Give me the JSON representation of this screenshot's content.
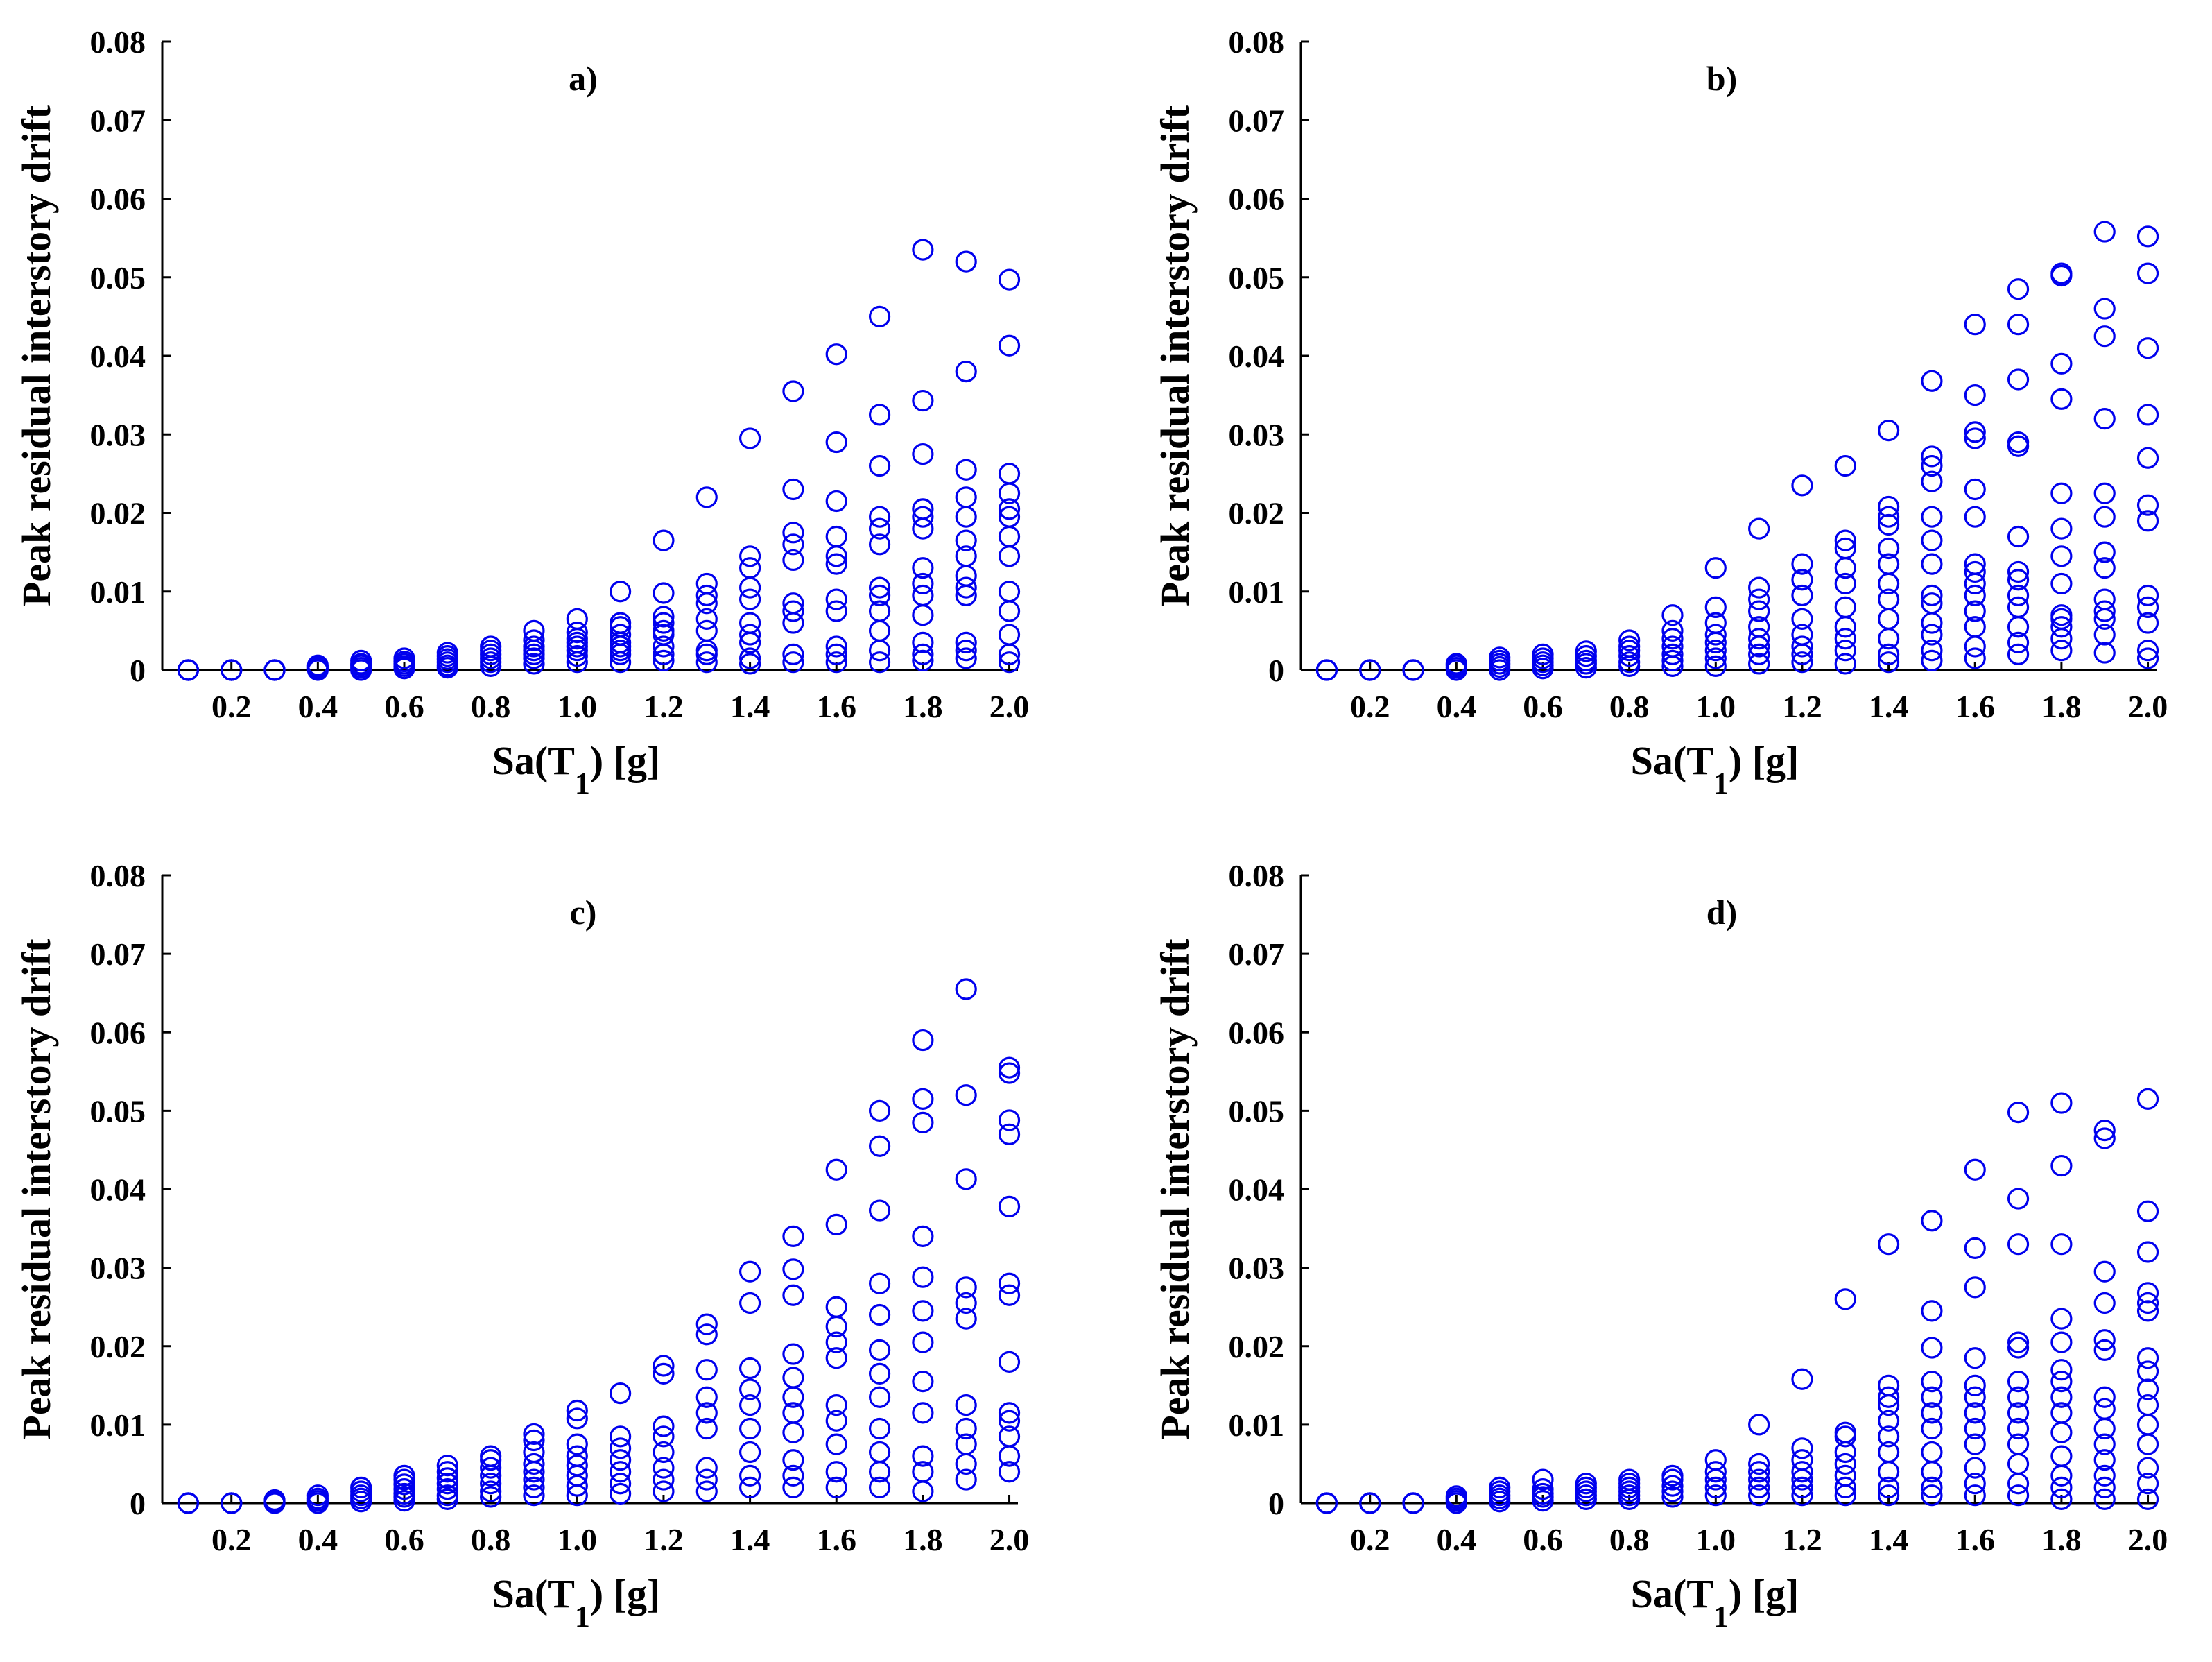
{
  "figure": {
    "point_color": "#0000ee",
    "axis_color": "#000000"
  },
  "chart_data": [
    {
      "type": "scatter",
      "title": "a)",
      "xlabel": "Sa(T1) [g]",
      "xlabel_main": "Sa(T",
      "xlabel_sub": "1",
      "xlabel_tail": ") [g]",
      "ylabel": "Peak residual interstory drift",
      "xlim": [
        0.04,
        2.02
      ],
      "ylim": [
        0,
        0.08
      ],
      "xticks": [
        "0.2",
        "0.4",
        "0.6",
        "0.8",
        "1.0",
        "1.2",
        "1.4",
        "1.6",
        "1.8",
        "2.0"
      ],
      "yticks": [
        "0",
        "0.01",
        "0.02",
        "0.03",
        "0.04",
        "0.05",
        "0.06",
        "0.07",
        "0.08"
      ],
      "x": [
        0.1,
        0.2,
        0.3,
        0.4,
        0.5,
        0.6,
        0.7,
        0.8,
        0.9,
        1.0,
        1.1,
        1.2,
        1.3,
        1.4,
        1.5,
        1.6,
        1.7,
        1.8,
        1.9,
        2.0
      ],
      "y": [
        [
          0,
          0,
          0,
          0
        ],
        [
          0,
          0,
          0,
          0
        ],
        [
          0,
          0,
          0,
          0
        ],
        [
          0,
          0.0002,
          0.0004,
          0.0006
        ],
        [
          0,
          0.0003,
          0.0006,
          0.0008,
          0.0012
        ],
        [
          0.0002,
          0.0005,
          0.0008,
          0.0011,
          0.0015
        ],
        [
          0.0003,
          0.0006,
          0.001,
          0.0014,
          0.0018,
          0.0022
        ],
        [
          0.0005,
          0.001,
          0.0015,
          0.002,
          0.0025,
          0.003
        ],
        [
          0.0008,
          0.0015,
          0.002,
          0.0025,
          0.003,
          0.0038,
          0.005
        ],
        [
          0.001,
          0.0018,
          0.0025,
          0.003,
          0.0035,
          0.004,
          0.0048,
          0.0065
        ],
        [
          0.001,
          0.002,
          0.0025,
          0.003,
          0.0035,
          0.0045,
          0.0055,
          0.006,
          0.01
        ],
        [
          0.0012,
          0.002,
          0.003,
          0.0045,
          0.005,
          0.006,
          0.0068,
          0.0098,
          0.0165
        ],
        [
          0.001,
          0.002,
          0.0025,
          0.005,
          0.0065,
          0.0085,
          0.0095,
          0.011,
          0.022
        ],
        [
          0.0008,
          0.0015,
          0.0035,
          0.0045,
          0.006,
          0.009,
          0.0105,
          0.013,
          0.0145,
          0.0295
        ],
        [
          0.001,
          0.002,
          0.006,
          0.0075,
          0.0085,
          0.014,
          0.016,
          0.0175,
          0.023,
          0.0355
        ],
        [
          0.001,
          0.002,
          0.003,
          0.0075,
          0.009,
          0.0135,
          0.0145,
          0.017,
          0.0215,
          0.029,
          0.0402
        ],
        [
          0.001,
          0.0025,
          0.005,
          0.0075,
          0.0095,
          0.0105,
          0.016,
          0.018,
          0.0195,
          0.026,
          0.0325,
          0.045
        ],
        [
          0.0012,
          0.002,
          0.0035,
          0.007,
          0.0095,
          0.011,
          0.013,
          0.018,
          0.0195,
          0.0205,
          0.0275,
          0.0343,
          0.0535
        ],
        [
          0.0015,
          0.0025,
          0.0035,
          0.0095,
          0.0105,
          0.012,
          0.0145,
          0.0165,
          0.0195,
          0.022,
          0.0255,
          0.038,
          0.052
        ],
        [
          0.001,
          0.002,
          0.0045,
          0.0075,
          0.01,
          0.0145,
          0.017,
          0.0195,
          0.0205,
          0.0225,
          0.025,
          0.0413,
          0.0497
        ]
      ]
    },
    {
      "type": "scatter",
      "title": "b)",
      "xlabel": "Sa(T1) [g]",
      "xlabel_main": "Sa(T",
      "xlabel_sub": "1",
      "xlabel_tail": ") [g]",
      "ylabel": "Peak residual interstory drift",
      "xlim": [
        0.04,
        2.02
      ],
      "ylim": [
        0,
        0.08
      ],
      "xticks": [
        "0.2",
        "0.4",
        "0.6",
        "0.8",
        "1.0",
        "1.2",
        "1.4",
        "1.6",
        "1.8",
        "2.0"
      ],
      "yticks": [
        "0",
        "0.01",
        "0.02",
        "0.03",
        "0.04",
        "0.05",
        "0.06",
        "0.07",
        "0.08"
      ],
      "x": [
        0.1,
        0.2,
        0.3,
        0.4,
        0.5,
        0.6,
        0.7,
        0.8,
        0.9,
        1.0,
        1.1,
        1.2,
        1.3,
        1.4,
        1.5,
        1.6,
        1.7,
        1.8,
        1.9,
        2.0
      ],
      "y": [
        [
          0,
          0,
          0
        ],
        [
          0,
          0,
          0
        ],
        [
          0,
          0,
          0
        ],
        [
          0,
          0.0003,
          0.0006,
          0.0008
        ],
        [
          0,
          0.0004,
          0.0008,
          0.0012,
          0.0016
        ],
        [
          0.0002,
          0.0006,
          0.001,
          0.0015,
          0.002
        ],
        [
          0.0003,
          0.0008,
          0.0012,
          0.0018,
          0.0024
        ],
        [
          0.0005,
          0.001,
          0.0018,
          0.0025,
          0.003,
          0.0038
        ],
        [
          0.0005,
          0.0012,
          0.002,
          0.003,
          0.004,
          0.005,
          0.007
        ],
        [
          0.0005,
          0.0015,
          0.0025,
          0.0035,
          0.0045,
          0.006,
          0.008,
          0.013
        ],
        [
          0.0008,
          0.002,
          0.003,
          0.004,
          0.0055,
          0.0075,
          0.009,
          0.0105,
          0.018
        ],
        [
          0.001,
          0.002,
          0.003,
          0.0045,
          0.0065,
          0.0095,
          0.0115,
          0.0135,
          0.0235
        ],
        [
          0.0008,
          0.0025,
          0.004,
          0.0055,
          0.008,
          0.011,
          0.013,
          0.0155,
          0.0165,
          0.026
        ],
        [
          0.001,
          0.002,
          0.004,
          0.0065,
          0.009,
          0.011,
          0.0135,
          0.0155,
          0.0185,
          0.0195,
          0.0208,
          0.0305
        ],
        [
          0.0012,
          0.0025,
          0.0045,
          0.006,
          0.0085,
          0.0095,
          0.0135,
          0.0165,
          0.0195,
          0.024,
          0.026,
          0.0272,
          0.0368
        ],
        [
          0.0015,
          0.003,
          0.0055,
          0.0075,
          0.0095,
          0.011,
          0.0125,
          0.0135,
          0.0195,
          0.023,
          0.0295,
          0.0303,
          0.035,
          0.044
        ],
        [
          0.002,
          0.0035,
          0.0055,
          0.008,
          0.0095,
          0.0115,
          0.0125,
          0.017,
          0.0285,
          0.029,
          0.037,
          0.044,
          0.0485
        ],
        [
          0.0025,
          0.004,
          0.0055,
          0.0065,
          0.007,
          0.011,
          0.0145,
          0.018,
          0.0225,
          0.0345,
          0.039,
          0.0502,
          0.0505
        ],
        [
          0.0022,
          0.0045,
          0.0065,
          0.0075,
          0.009,
          0.013,
          0.015,
          0.0195,
          0.0225,
          0.032,
          0.0425,
          0.046,
          0.0558
        ],
        [
          0.0015,
          0.0025,
          0.006,
          0.008,
          0.0095,
          0.019,
          0.021,
          0.027,
          0.0325,
          0.041,
          0.0505,
          0.0552
        ]
      ]
    },
    {
      "type": "scatter",
      "title": "c)",
      "xlabel": "Sa(T1) [g]",
      "xlabel_main": "Sa(T",
      "xlabel_sub": "1",
      "xlabel_tail": ") [g]",
      "ylabel": "Peak residual interstory drift",
      "xlim": [
        0.04,
        2.02
      ],
      "ylim": [
        0,
        0.08
      ],
      "xticks": [
        "0.2",
        "0.4",
        "0.6",
        "0.8",
        "1.0",
        "1.2",
        "1.4",
        "1.6",
        "1.8",
        "2.0"
      ],
      "yticks": [
        "0",
        "0.01",
        "0.02",
        "0.03",
        "0.04",
        "0.05",
        "0.06",
        "0.07",
        "0.08"
      ],
      "x": [
        0.1,
        0.2,
        0.3,
        0.4,
        0.5,
        0.6,
        0.7,
        0.8,
        0.9,
        1.0,
        1.1,
        1.2,
        1.3,
        1.4,
        1.5,
        1.6,
        1.7,
        1.8,
        1.9,
        2.0
      ],
      "y": [
        [
          0,
          0,
          0
        ],
        [
          0,
          0,
          0
        ],
        [
          0,
          0.0002,
          0.0004
        ],
        [
          0,
          0.0003,
          0.0006,
          0.001
        ],
        [
          0.0002,
          0.0006,
          0.001,
          0.0015,
          0.002
        ],
        [
          0.0003,
          0.0008,
          0.0012,
          0.0018,
          0.0024,
          0.003,
          0.0035
        ],
        [
          0.0005,
          0.001,
          0.0018,
          0.0025,
          0.0032,
          0.004,
          0.0048
        ],
        [
          0.0008,
          0.0015,
          0.0025,
          0.0035,
          0.0045,
          0.0055,
          0.006
        ],
        [
          0.001,
          0.002,
          0.003,
          0.004,
          0.005,
          0.0065,
          0.008,
          0.0088
        ],
        [
          0.001,
          0.0022,
          0.0035,
          0.0048,
          0.006,
          0.0075,
          0.0108,
          0.0118
        ],
        [
          0.0012,
          0.0025,
          0.004,
          0.0055,
          0.007,
          0.0085,
          0.014
        ],
        [
          0.0015,
          0.003,
          0.0045,
          0.0065,
          0.0085,
          0.0098,
          0.0165,
          0.0175
        ],
        [
          0.0015,
          0.003,
          0.0045,
          0.0095,
          0.0115,
          0.0135,
          0.017,
          0.0215,
          0.0228
        ],
        [
          0.002,
          0.0035,
          0.0065,
          0.0095,
          0.0125,
          0.0145,
          0.0172,
          0.0255,
          0.0295
        ],
        [
          0.002,
          0.0035,
          0.0055,
          0.009,
          0.0115,
          0.0135,
          0.016,
          0.019,
          0.0265,
          0.0298,
          0.034
        ],
        [
          0.002,
          0.004,
          0.0075,
          0.0105,
          0.0125,
          0.0185,
          0.0205,
          0.0225,
          0.025,
          0.0355,
          0.0425
        ],
        [
          0.002,
          0.004,
          0.0065,
          0.0095,
          0.0135,
          0.0165,
          0.0195,
          0.024,
          0.028,
          0.0373,
          0.0455,
          0.05
        ],
        [
          0.0015,
          0.004,
          0.006,
          0.0115,
          0.0155,
          0.0205,
          0.0245,
          0.0288,
          0.034,
          0.0485,
          0.0515,
          0.059
        ],
        [
          0.003,
          0.005,
          0.0075,
          0.0095,
          0.0125,
          0.0235,
          0.0255,
          0.0275,
          0.0413,
          0.052,
          0.0655
        ],
        [
          0.004,
          0.006,
          0.0085,
          0.0105,
          0.0115,
          0.018,
          0.0265,
          0.028,
          0.0378,
          0.047,
          0.0488,
          0.0548,
          0.0555
        ]
      ]
    },
    {
      "type": "scatter",
      "title": "d)",
      "xlabel": "Sa(T1) [g]",
      "xlabel_main": "Sa(T",
      "xlabel_sub": "1",
      "xlabel_tail": ") [g]",
      "ylabel": "Peak residual interstory drift",
      "xlim": [
        0.04,
        2.02
      ],
      "ylim": [
        0,
        0.08
      ],
      "xticks": [
        "0.2",
        "0.4",
        "0.6",
        "0.8",
        "1.0",
        "1.2",
        "1.4",
        "1.6",
        "1.8",
        "2.0"
      ],
      "yticks": [
        "0",
        "0.01",
        "0.02",
        "0.03",
        "0.04",
        "0.05",
        "0.06",
        "0.07",
        "0.08"
      ],
      "x": [
        0.1,
        0.2,
        0.3,
        0.4,
        0.5,
        0.6,
        0.7,
        0.8,
        0.9,
        1.0,
        1.1,
        1.2,
        1.3,
        1.4,
        1.5,
        1.6,
        1.7,
        1.8,
        1.9,
        2.0
      ],
      "y": [
        [
          0,
          0,
          0
        ],
        [
          0,
          0,
          0
        ],
        [
          0,
          0,
          0
        ],
        [
          0,
          0.0003,
          0.0006,
          0.0009
        ],
        [
          0.0002,
          0.0006,
          0.001,
          0.0015,
          0.002
        ],
        [
          0.0003,
          0.0008,
          0.0012,
          0.0018,
          0.003
        ],
        [
          0.0005,
          0.001,
          0.0015,
          0.002,
          0.0025
        ],
        [
          0.0005,
          0.001,
          0.0015,
          0.002,
          0.0025,
          0.003
        ],
        [
          0.0008,
          0.0015,
          0.0022,
          0.003,
          0.0035
        ],
        [
          0.001,
          0.002,
          0.003,
          0.004,
          0.0055
        ],
        [
          0.001,
          0.002,
          0.003,
          0.004,
          0.005,
          0.01
        ],
        [
          0.001,
          0.002,
          0.003,
          0.004,
          0.0055,
          0.007,
          0.0158
        ],
        [
          0.001,
          0.002,
          0.0035,
          0.005,
          0.0065,
          0.0085,
          0.009,
          0.026
        ],
        [
          0.001,
          0.002,
          0.004,
          0.0065,
          0.0085,
          0.0105,
          0.0125,
          0.0135,
          0.015,
          0.033
        ],
        [
          0.001,
          0.002,
          0.004,
          0.0065,
          0.0095,
          0.0115,
          0.0135,
          0.0155,
          0.0198,
          0.0245,
          0.036
        ],
        [
          0.001,
          0.0025,
          0.0045,
          0.0075,
          0.0095,
          0.0115,
          0.0135,
          0.015,
          0.0185,
          0.0275,
          0.0325,
          0.0425
        ],
        [
          0.001,
          0.0025,
          0.005,
          0.0075,
          0.0095,
          0.0115,
          0.0135,
          0.0155,
          0.0198,
          0.0205,
          0.033,
          0.0388,
          0.0498
        ],
        [
          0.0005,
          0.002,
          0.0035,
          0.006,
          0.009,
          0.0115,
          0.0135,
          0.0155,
          0.017,
          0.0205,
          0.0235,
          0.033,
          0.043,
          0.051
        ],
        [
          0.0005,
          0.002,
          0.0035,
          0.0055,
          0.0075,
          0.0095,
          0.012,
          0.0135,
          0.0195,
          0.0208,
          0.0255,
          0.0295,
          0.0465,
          0.0475
        ],
        [
          0.0005,
          0.0025,
          0.0045,
          0.0075,
          0.01,
          0.0125,
          0.0145,
          0.0168,
          0.0185,
          0.0245,
          0.0255,
          0.0268,
          0.032,
          0.0372,
          0.0515
        ]
      ]
    }
  ]
}
